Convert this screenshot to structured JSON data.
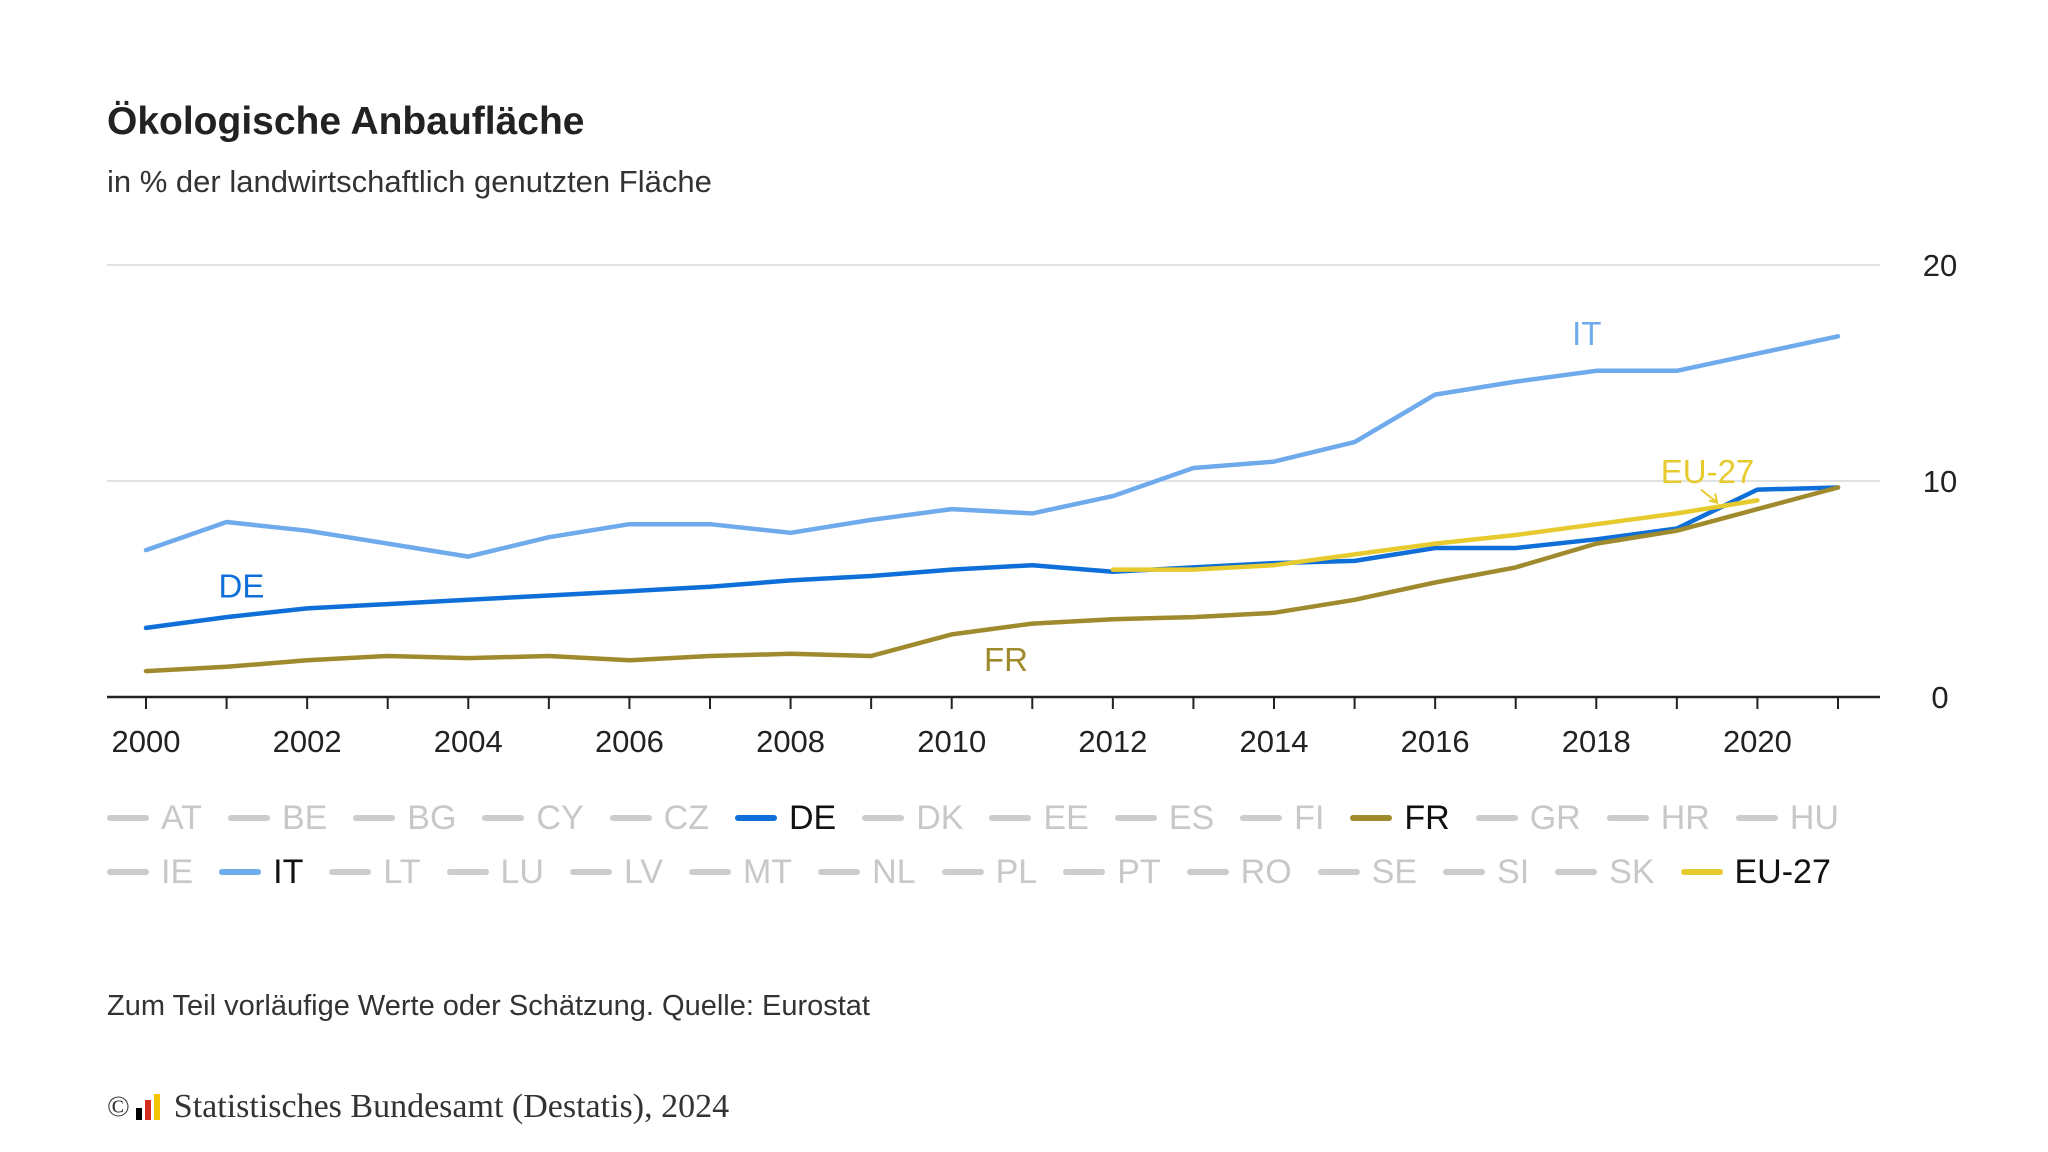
{
  "header": {
    "title": "Ökologische Anbaufläche",
    "subtitle": "in % der landwirtschaftlich genutzten Fläche"
  },
  "footer": {
    "note": "Zum Teil vorläufige Werte oder Schätzung. Quelle: Eurostat",
    "copyright_symbol": "©",
    "credit": "Statistisches Bundesamt (Destatis), 2024"
  },
  "logo_colors": [
    "#000000",
    "#d52b1e",
    "#f5c400"
  ],
  "legend": {
    "items": [
      {
        "label": "AT",
        "active": false
      },
      {
        "label": "BE",
        "active": false
      },
      {
        "label": "BG",
        "active": false
      },
      {
        "label": "CY",
        "active": false
      },
      {
        "label": "CZ",
        "active": false
      },
      {
        "label": "DE",
        "active": true,
        "color": "#0f6fd9"
      },
      {
        "label": "DK",
        "active": false
      },
      {
        "label": "EE",
        "active": false
      },
      {
        "label": "ES",
        "active": false
      },
      {
        "label": "FI",
        "active": false
      },
      {
        "label": "FR",
        "active": true,
        "color": "#a08a2e"
      },
      {
        "label": "GR",
        "active": false
      },
      {
        "label": "HR",
        "active": false
      },
      {
        "label": "HU",
        "active": false
      },
      {
        "label": "IE",
        "active": false
      },
      {
        "label": "IT",
        "active": true,
        "color": "#6eaaec"
      },
      {
        "label": "LT",
        "active": false
      },
      {
        "label": "LU",
        "active": false
      },
      {
        "label": "LV",
        "active": false
      },
      {
        "label": "MT",
        "active": false
      },
      {
        "label": "NL",
        "active": false
      },
      {
        "label": "PL",
        "active": false
      },
      {
        "label": "PT",
        "active": false
      },
      {
        "label": "RO",
        "active": false
      },
      {
        "label": "SE",
        "active": false
      },
      {
        "label": "SI",
        "active": false
      },
      {
        "label": "SK",
        "active": false
      },
      {
        "label": "EU-27",
        "active": true,
        "color": "#e6ca2e"
      }
    ]
  },
  "chart_data": {
    "type": "line",
    "title": "Ökologische Anbaufläche",
    "subtitle": "in % der landwirtschaftlich genutzten Fläche",
    "xlim": [
      2000,
      2021
    ],
    "ylim": [
      0,
      20
    ],
    "x_ticks": [
      "2000",
      "2002",
      "2004",
      "2006",
      "2008",
      "2010",
      "2012",
      "2014",
      "2016",
      "2018",
      "2020"
    ],
    "y_ticks": [
      "0",
      "10",
      "20"
    ],
    "y_axis_position": "right",
    "grid": true,
    "series": [
      {
        "name": "IT",
        "color": "#6eaaec",
        "x": [
          2000,
          2001,
          2002,
          2003,
          2004,
          2005,
          2006,
          2007,
          2008,
          2009,
          2010,
          2011,
          2012,
          2013,
          2014,
          2015,
          2016,
          2017,
          2018,
          2019,
          2020,
          2021
        ],
        "values": [
          6.8,
          8.1,
          7.7,
          7.1,
          6.5,
          7.4,
          8.0,
          8.0,
          7.6,
          8.2,
          8.7,
          8.5,
          9.3,
          10.6,
          10.9,
          11.8,
          14.0,
          14.6,
          15.1,
          15.1,
          15.9,
          16.7
        ]
      },
      {
        "name": "DE",
        "color": "#0f6fd9",
        "x": [
          2000,
          2001,
          2002,
          2003,
          2004,
          2005,
          2006,
          2007,
          2008,
          2009,
          2010,
          2011,
          2012,
          2013,
          2014,
          2015,
          2016,
          2017,
          2018,
          2019,
          2020,
          2021
        ],
        "values": [
          3.2,
          3.7,
          4.1,
          4.3,
          4.5,
          4.7,
          4.9,
          5.1,
          5.4,
          5.6,
          5.9,
          6.1,
          5.8,
          6.0,
          6.2,
          6.3,
          6.9,
          6.9,
          7.3,
          7.8,
          9.6,
          9.7
        ]
      },
      {
        "name": "FR",
        "color": "#a08a2e",
        "x": [
          2000,
          2001,
          2002,
          2003,
          2004,
          2005,
          2006,
          2007,
          2008,
          2009,
          2010,
          2011,
          2012,
          2013,
          2014,
          2015,
          2016,
          2017,
          2018,
          2019,
          2020,
          2021
        ],
        "values": [
          1.2,
          1.4,
          1.7,
          1.9,
          1.8,
          1.9,
          1.7,
          1.9,
          2.0,
          1.9,
          2.9,
          3.4,
          3.6,
          3.7,
          3.9,
          4.5,
          5.3,
          6.0,
          7.1,
          7.7,
          8.7,
          9.7
        ]
      },
      {
        "name": "EU-27",
        "color": "#e6ca2e",
        "x": [
          2012,
          2013,
          2014,
          2015,
          2016,
          2017,
          2018,
          2019,
          2020
        ],
        "values": [
          5.9,
          5.9,
          6.1,
          6.6,
          7.1,
          7.5,
          8.0,
          8.5,
          9.1
        ]
      }
    ],
    "annotations": [
      {
        "text": "IT",
        "x": 2017.7,
        "y": 16.3,
        "color": "#6eaaec"
      },
      {
        "text": "DE",
        "x": 2000.9,
        "y": 4.6,
        "color": "#0f6fd9"
      },
      {
        "text": "FR",
        "x": 2010.4,
        "y": 1.2,
        "color": "#a08a2e"
      },
      {
        "text": "EU-27",
        "x": 2018.8,
        "y": 9.9,
        "color": "#e6ca2e"
      }
    ]
  }
}
